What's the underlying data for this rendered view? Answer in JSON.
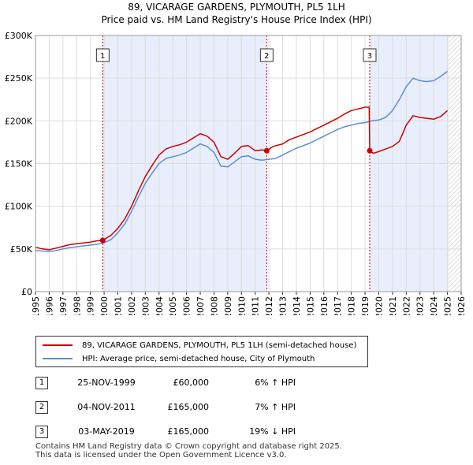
{
  "chart_data": {
    "type": "line",
    "title": "89, VICARAGE GARDENS, PLYMOUTH, PL5 1LH",
    "subtitle": "Price paid vs. HM Land Registry's House Price Index (HPI)",
    "ylim": [
      0,
      300000
    ],
    "xlim": [
      1995,
      2026
    ],
    "y_ticks": [
      {
        "value": 0,
        "label": "£0"
      },
      {
        "value": 50000,
        "label": "£50K"
      },
      {
        "value": 100000,
        "label": "£100K"
      },
      {
        "value": 150000,
        "label": "£150K"
      },
      {
        "value": 200000,
        "label": "£200K"
      },
      {
        "value": 250000,
        "label": "£250K"
      },
      {
        "value": 300000,
        "label": "£300K"
      }
    ],
    "x_ticks": [
      1995,
      1996,
      1997,
      1998,
      1999,
      2000,
      2001,
      2002,
      2003,
      2004,
      2005,
      2006,
      2007,
      2008,
      2009,
      2010,
      2011,
      2012,
      2013,
      2014,
      2015,
      2016,
      2017,
      2018,
      2019,
      2020,
      2021,
      2022,
      2023,
      2024,
      2025,
      2026
    ],
    "shaded_periods": [
      [
        1999.9,
        2011.84
      ],
      [
        2019.34,
        2025.1
      ]
    ],
    "hatched_from": 2025.1,
    "series": [
      {
        "name": "89, VICARAGE GARDENS, PLYMOUTH, PL5 1LH (semi-detached house)",
        "color": "#cc0000",
        "x": [
          1995,
          1995.5,
          1996,
          1996.5,
          1997,
          1997.5,
          1998,
          1998.5,
          1999,
          1999.5,
          1999.9,
          2000.5,
          2001,
          2001.5,
          2002,
          2002.5,
          2003,
          2003.5,
          2004,
          2004.5,
          2005,
          2005.5,
          2006,
          2006.5,
          2007,
          2007.5,
          2008,
          2008.5,
          2009,
          2009.5,
          2010,
          2010.5,
          2011,
          2011.5,
          2011.84,
          2012.3,
          2013,
          2013.5,
          2014,
          2014.5,
          2015,
          2015.5,
          2016,
          2016.5,
          2017,
          2017.5,
          2018,
          2018.5,
          2019,
          2019.3,
          2019.34,
          2019.6,
          2020,
          2020.5,
          2021,
          2021.5,
          2022,
          2022.5,
          2023,
          2023.5,
          2024,
          2024.5,
          2025
        ],
        "values": [
          52000,
          50000,
          49000,
          51000,
          53000,
          55000,
          56000,
          57000,
          58000,
          59500,
          60000,
          66000,
          74000,
          85000,
          100000,
          118000,
          135000,
          148000,
          160000,
          167000,
          170000,
          172000,
          175000,
          180000,
          185000,
          182000,
          175000,
          158000,
          155000,
          162000,
          170000,
          171000,
          165000,
          166000,
          165000,
          170000,
          173000,
          178000,
          181000,
          184000,
          187000,
          191000,
          195000,
          199000,
          203000,
          208000,
          212000,
          214000,
          216000,
          216000,
          165000,
          162000,
          164000,
          167000,
          170000,
          176000,
          195000,
          206000,
          204000,
          203000,
          202000,
          205000,
          212000
        ]
      },
      {
        "name": "HPI: Average price, semi-detached house, City of Plymouth",
        "color": "#5b8ed6",
        "x": [
          1995,
          1995.5,
          1996,
          1996.5,
          1997,
          1997.5,
          1998,
          1998.5,
          1999,
          1999.5,
          1999.9,
          2000.5,
          2001,
          2001.5,
          2002,
          2002.5,
          2003,
          2003.5,
          2004,
          2004.5,
          2005,
          2005.5,
          2006,
          2006.5,
          2007,
          2007.5,
          2008,
          2008.5,
          2009,
          2009.5,
          2010,
          2010.5,
          2011,
          2011.5,
          2012,
          2012.5,
          2013,
          2013.5,
          2014,
          2014.5,
          2015,
          2015.5,
          2016,
          2016.5,
          2017,
          2017.5,
          2018,
          2018.5,
          2019,
          2019.5,
          2020,
          2020.5,
          2021,
          2021.5,
          2022,
          2022.5,
          2023,
          2023.5,
          2024,
          2024.5,
          2025
        ],
        "values": [
          48000,
          47500,
          47000,
          48000,
          50000,
          51500,
          52500,
          53500,
          54500,
          55500,
          56500,
          61000,
          69000,
          79000,
          94000,
          111000,
          127000,
          139000,
          150000,
          156000,
          158000,
          160000,
          163000,
          168000,
          173000,
          170000,
          163000,
          147000,
          146000,
          152000,
          158000,
          159000,
          155000,
          154000,
          155000,
          156000,
          160000,
          164000,
          168000,
          171000,
          174000,
          178000,
          182000,
          186000,
          190000,
          193000,
          195000,
          197000,
          198000,
          200000,
          201000,
          204000,
          212000,
          225000,
          240000,
          250000,
          247000,
          246000,
          247000,
          252000,
          258000
        ]
      }
    ],
    "sale_markers": [
      {
        "label": "1",
        "x": 1999.9,
        "value": 60000
      },
      {
        "label": "2",
        "x": 2011.84,
        "value": 165000
      },
      {
        "label": "3",
        "x": 2019.34,
        "value": 165000
      }
    ]
  },
  "legend": {
    "red_label": "89, VICARAGE GARDENS, PLYMOUTH, PL5 1LH (semi-detached house)",
    "blue_label": "HPI: Average price, semi-detached house, City of Plymouth",
    "red_color": "#cc0000",
    "blue_color": "#5b8ed6"
  },
  "sales": [
    {
      "num": "1",
      "date": "25-NOV-1999",
      "price": "£60,000",
      "hpi": "6% ↑ HPI"
    },
    {
      "num": "2",
      "date": "04-NOV-2011",
      "price": "£165,000",
      "hpi": "7% ↑ HPI"
    },
    {
      "num": "3",
      "date": "03-MAY-2019",
      "price": "£165,000",
      "hpi": "19% ↓ HPI"
    }
  ],
  "footer": {
    "line1": "Contains HM Land Registry data © Crown copyright and database right 2025.",
    "line2": "This data is licensed under the Open Government Licence v3.0."
  }
}
